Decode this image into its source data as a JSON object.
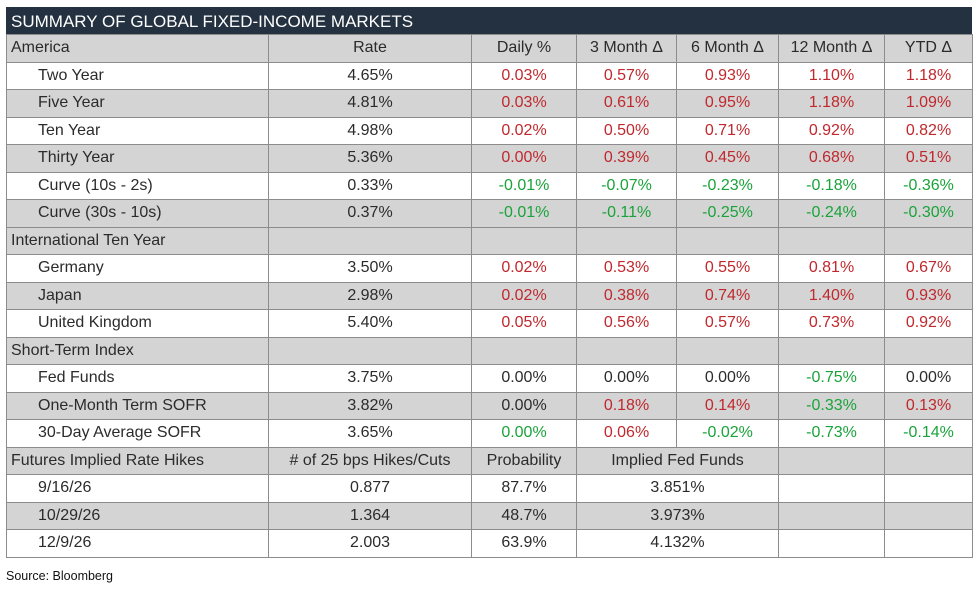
{
  "title": "SUMMARY OF GLOBAL FIXED-INCOME MARKETS",
  "columns": [
    "America",
    "Rate",
    "Daily %",
    "3 Month Δ",
    "6 Month Δ",
    "12 Month Δ",
    "YTD Δ"
  ],
  "america": [
    {
      "name": "Two Year",
      "vals": [
        "4.65%",
        "0.03%",
        "0.57%",
        "0.93%",
        "1.10%",
        "1.18%"
      ],
      "dirs": [
        "n",
        "p",
        "p",
        "p",
        "p",
        "p"
      ]
    },
    {
      "name": "Five Year",
      "vals": [
        "4.81%",
        "0.03%",
        "0.61%",
        "0.95%",
        "1.18%",
        "1.09%"
      ],
      "dirs": [
        "n",
        "p",
        "p",
        "p",
        "p",
        "p"
      ]
    },
    {
      "name": "Ten Year",
      "vals": [
        "4.98%",
        "0.02%",
        "0.50%",
        "0.71%",
        "0.92%",
        "0.82%"
      ],
      "dirs": [
        "n",
        "p",
        "p",
        "p",
        "p",
        "p"
      ]
    },
    {
      "name": "Thirty Year",
      "vals": [
        "5.36%",
        "0.00%",
        "0.39%",
        "0.45%",
        "0.68%",
        "0.51%"
      ],
      "dirs": [
        "n",
        "p",
        "p",
        "p",
        "p",
        "p"
      ]
    },
    {
      "name": "Curve (10s - 2s)",
      "vals": [
        "0.33%",
        "-0.01%",
        "-0.07%",
        "-0.23%",
        "-0.18%",
        "-0.36%"
      ],
      "dirs": [
        "n",
        "g",
        "g",
        "g",
        "g",
        "g"
      ]
    },
    {
      "name": "Curve (30s - 10s)",
      "vals": [
        "0.37%",
        "-0.01%",
        "-0.11%",
        "-0.25%",
        "-0.24%",
        "-0.30%"
      ],
      "dirs": [
        "n",
        "g",
        "g",
        "g",
        "g",
        "g"
      ]
    }
  ],
  "intl_header": "International Ten Year",
  "international": [
    {
      "name": "Germany",
      "vals": [
        "3.50%",
        "0.02%",
        "0.53%",
        "0.55%",
        "0.81%",
        "0.67%"
      ],
      "dirs": [
        "n",
        "p",
        "p",
        "p",
        "p",
        "p"
      ]
    },
    {
      "name": "Japan",
      "vals": [
        "2.98%",
        "0.02%",
        "0.38%",
        "0.74%",
        "1.40%",
        "0.93%"
      ],
      "dirs": [
        "n",
        "p",
        "p",
        "p",
        "p",
        "p"
      ]
    },
    {
      "name": "United Kingdom",
      "vals": [
        "5.40%",
        "0.05%",
        "0.56%",
        "0.57%",
        "0.73%",
        "0.92%"
      ],
      "dirs": [
        "n",
        "p",
        "p",
        "p",
        "p",
        "p"
      ]
    }
  ],
  "short_header": "Short-Term Index",
  "short_term": [
    {
      "name": "Fed Funds",
      "vals": [
        "3.75%",
        "0.00%",
        "0.00%",
        "0.00%",
        "-0.75%",
        "0.00%"
      ],
      "dirs": [
        "n",
        "n",
        "n",
        "n",
        "g",
        "n"
      ]
    },
    {
      "name": "One-Month Term SOFR",
      "vals": [
        "3.82%",
        "0.00%",
        "0.18%",
        "0.14%",
        "-0.33%",
        "0.13%"
      ],
      "dirs": [
        "n",
        "n",
        "p",
        "p",
        "g",
        "p"
      ]
    },
    {
      "name": "30-Day Average SOFR",
      "vals": [
        "3.65%",
        "0.00%",
        "0.06%",
        "-0.02%",
        "-0.73%",
        "-0.14%"
      ],
      "dirs": [
        "n",
        "g",
        "p",
        "g",
        "g",
        "g"
      ]
    }
  ],
  "futures_header": {
    "label": "Futures Implied Rate Hikes",
    "hikes": "# of 25 bps Hikes/Cuts",
    "probability": "Probability",
    "implied": "Implied Fed Funds"
  },
  "futures": [
    {
      "date": "9/16/26",
      "hikes": "0.877",
      "probability": "87.7%",
      "implied": "3.851%"
    },
    {
      "date": "10/29/26",
      "hikes": "1.364",
      "probability": "48.7%",
      "implied": "3.973%"
    },
    {
      "date": "12/9/26",
      "hikes": "2.003",
      "probability": "63.9%",
      "implied": "4.132%"
    }
  ],
  "source": "Source: Bloomberg",
  "colors": {
    "header_bg": "#243140",
    "row_gray": "#d4d4d4",
    "positive": "#c0282d",
    "negative": "#1aa33a"
  }
}
